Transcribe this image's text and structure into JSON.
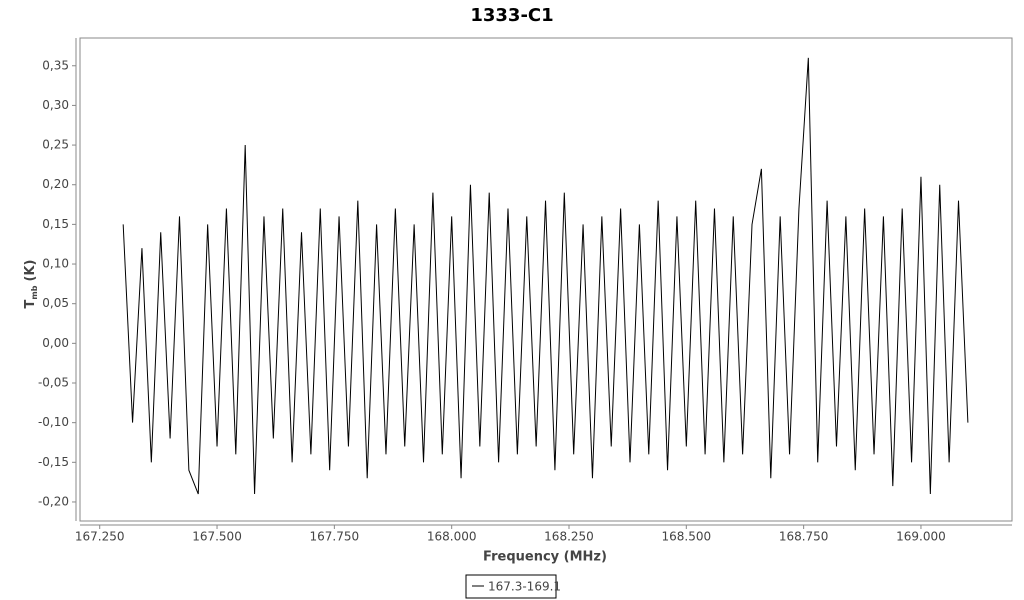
{
  "chart_data": {
    "type": "line",
    "title": "1333-C1",
    "xlabel": "Frequency (MHz)",
    "ylabel": "T",
    "ylabel_sub": "mb",
    "ylabel_unit": "(K)",
    "x": [
      167.3,
      167.32,
      167.34,
      167.36,
      167.38,
      167.4,
      167.42,
      167.44,
      167.46,
      167.48,
      167.5,
      167.52,
      167.54,
      167.56,
      167.58,
      167.6,
      167.62,
      167.64,
      167.66,
      167.68,
      167.7,
      167.72,
      167.74,
      167.76,
      167.78,
      167.8,
      167.82,
      167.84,
      167.86,
      167.88,
      167.9,
      167.92,
      167.94,
      167.96,
      167.98,
      168.0,
      168.02,
      168.04,
      168.06,
      168.08,
      168.1,
      168.12,
      168.14,
      168.16,
      168.18,
      168.2,
      168.22,
      168.24,
      168.26,
      168.28,
      168.3,
      168.32,
      168.34,
      168.36,
      168.38,
      168.4,
      168.42,
      168.44,
      168.46,
      168.48,
      168.5,
      168.52,
      168.54,
      168.56,
      168.58,
      168.6,
      168.62,
      168.64,
      168.66,
      168.68,
      168.7,
      168.72,
      168.74,
      168.76,
      168.78,
      168.8,
      168.82,
      168.84,
      168.86,
      168.88,
      168.9,
      168.92,
      168.94,
      168.96,
      168.98,
      169.0,
      169.02,
      169.04,
      169.06,
      169.08,
      169.1
    ],
    "series": [
      {
        "name": "167.3-169.1",
        "color": "#000000",
        "values": [
          0.15,
          -0.1,
          0.12,
          -0.15,
          0.14,
          -0.12,
          0.16,
          -0.16,
          -0.19,
          0.15,
          -0.13,
          0.17,
          -0.14,
          0.25,
          -0.19,
          0.16,
          -0.12,
          0.17,
          -0.15,
          0.14,
          -0.14,
          0.17,
          -0.16,
          0.16,
          -0.13,
          0.18,
          -0.17,
          0.15,
          -0.14,
          0.17,
          -0.13,
          0.15,
          -0.15,
          0.19,
          -0.14,
          0.16,
          -0.17,
          0.2,
          -0.13,
          0.19,
          -0.15,
          0.17,
          -0.14,
          0.16,
          -0.13,
          0.18,
          -0.16,
          0.19,
          -0.14,
          0.15,
          -0.17,
          0.16,
          -0.13,
          0.17,
          -0.15,
          0.15,
          -0.14,
          0.18,
          -0.16,
          0.16,
          -0.13,
          0.18,
          -0.14,
          0.17,
          -0.15,
          0.16,
          -0.14,
          0.15,
          0.22,
          -0.17,
          0.16,
          -0.14,
          0.17,
          0.36,
          -0.15,
          0.18,
          -0.13,
          0.16,
          -0.16,
          0.17,
          -0.14,
          0.16,
          -0.18,
          0.17,
          -0.15,
          0.21,
          -0.19,
          0.2,
          -0.15,
          0.18,
          -0.1
        ]
      }
    ],
    "xlim": [
      167.208,
      169.194
    ],
    "ylim": [
      -0.224,
      0.385
    ],
    "xticks": [
      {
        "value": 167.25,
        "label": "167.250"
      },
      {
        "value": 167.5,
        "label": "167.500"
      },
      {
        "value": 167.75,
        "label": "167.750"
      },
      {
        "value": 168.0,
        "label": "168.000"
      },
      {
        "value": 168.25,
        "label": "168.250"
      },
      {
        "value": 168.5,
        "label": "168.500"
      },
      {
        "value": 168.75,
        "label": "168.750"
      },
      {
        "value": 169.0,
        "label": "169.000"
      }
    ],
    "yticks": [
      {
        "value": -0.2,
        "label": "-0,20"
      },
      {
        "value": -0.15,
        "label": "-0,15"
      },
      {
        "value": -0.1,
        "label": "-0,10"
      },
      {
        "value": -0.05,
        "label": "-0,05"
      },
      {
        "value": 0,
        "label": "0,00"
      },
      {
        "value": 0.05,
        "label": "0,05"
      },
      {
        "value": 0.1,
        "label": "0,10"
      },
      {
        "value": 0.15,
        "label": "0,15"
      },
      {
        "value": 0.2,
        "label": "0,20"
      },
      {
        "value": 0.25,
        "label": "0,25"
      },
      {
        "value": 0.3,
        "label": "0,30"
      },
      {
        "value": 0.35,
        "label": "0,35"
      }
    ],
    "grid": false
  }
}
